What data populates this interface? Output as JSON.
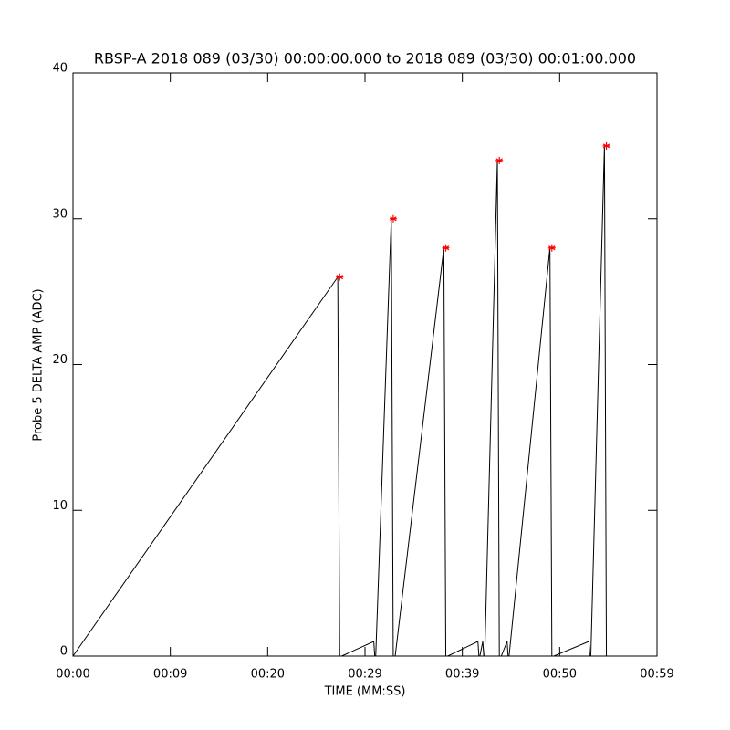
{
  "chart_data": {
    "type": "line",
    "title": "RBSP-A 2018 089 (03/30) 00:00:00.000 to 2018 089 (03/30) 00:01:00.000",
    "xlabel": "TIME (MM:SS)",
    "ylabel": "Probe 5 DELTA AMP (ADC)",
    "xlim": [
      0,
      60
    ],
    "ylim": [
      0,
      40
    ],
    "xticks": [
      {
        "value": 0,
        "label": "00:00"
      },
      {
        "value": 10,
        "label": "00:09"
      },
      {
        "value": 20,
        "label": "00:20"
      },
      {
        "value": 30,
        "label": "00:29"
      },
      {
        "value": 40,
        "label": "00:39"
      },
      {
        "value": 50,
        "label": "00:50"
      },
      {
        "value": 60,
        "label": "00:59"
      }
    ],
    "yticks": [
      0,
      10,
      20,
      30,
      40
    ],
    "series": [
      {
        "color": "#000000",
        "style": "line",
        "x": [
          0,
          27.2,
          27.4,
          27.6,
          30.9,
          31.0,
          31.1,
          32.7,
          32.9,
          33.1,
          38.1,
          38.3,
          38.5,
          41.6,
          41.7,
          41.8,
          42.1,
          42.2,
          42.3,
          43.6,
          43.8,
          44.0,
          44.6,
          44.7,
          44.8,
          49.0,
          49.2,
          49.4,
          53.0,
          53.1,
          53.2,
          54.6,
          54.8,
          55.0,
          60
        ],
        "values": [
          0,
          26,
          0,
          0,
          1,
          0,
          0,
          30,
          0,
          0,
          28,
          0,
          0,
          1,
          0,
          0,
          1,
          0,
          0,
          34,
          0,
          0,
          1,
          0,
          0,
          28,
          0,
          0,
          1,
          0,
          0,
          35,
          0,
          0,
          0
        ]
      },
      {
        "color": "#ff0000",
        "style": "asterisk",
        "x": [
          27.4,
          32.9,
          38.3,
          43.8,
          49.2,
          54.8
        ],
        "values": [
          26,
          30,
          28,
          34,
          28,
          35
        ]
      }
    ]
  }
}
